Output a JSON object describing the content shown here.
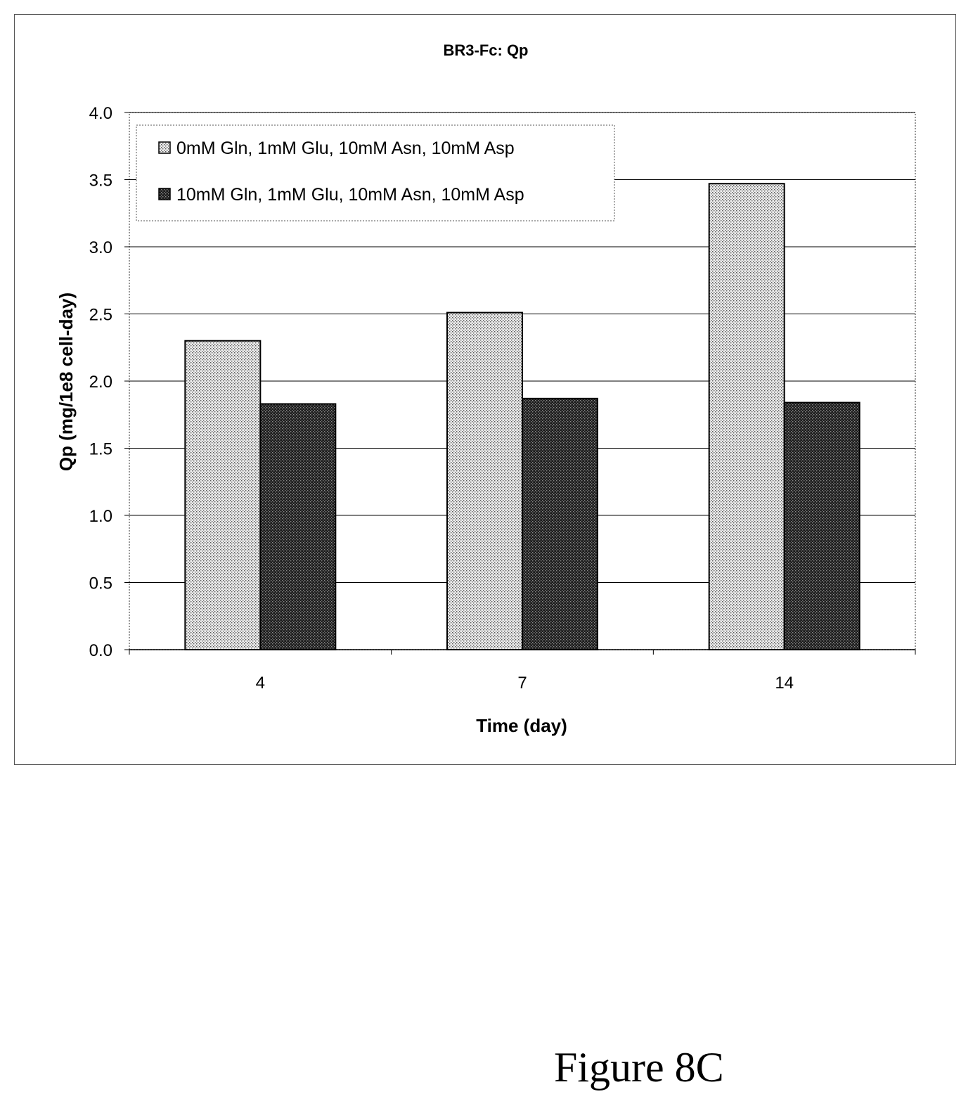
{
  "chart_data": {
    "type": "bar",
    "title": "BR3-Fc: Qp",
    "xlabel": "Time (day)",
    "ylabel": "Qp (mg/1e8 cell-day)",
    "categories": [
      "4",
      "7",
      "14"
    ],
    "ylim": [
      0,
      4.0
    ],
    "yticks": [
      "0.0",
      "0.5",
      "1.0",
      "1.5",
      "2.0",
      "2.5",
      "3.0",
      "3.5",
      "4.0"
    ],
    "grid": true,
    "legend_position": "top-left",
    "series": [
      {
        "name": "0mM Gln, 1mM Glu, 10mM Asn, 10mM Asp",
        "values": [
          2.3,
          2.51,
          3.47
        ],
        "pattern": "light-dots",
        "color": "#d4d4d4"
      },
      {
        "name": "10mM Gln, 1mM Glu, 10mM Asn, 10mM Asp",
        "values": [
          1.83,
          1.87,
          1.84
        ],
        "pattern": "dark-dots",
        "color": "#333333"
      }
    ]
  },
  "figure_label": "Figure 8C"
}
